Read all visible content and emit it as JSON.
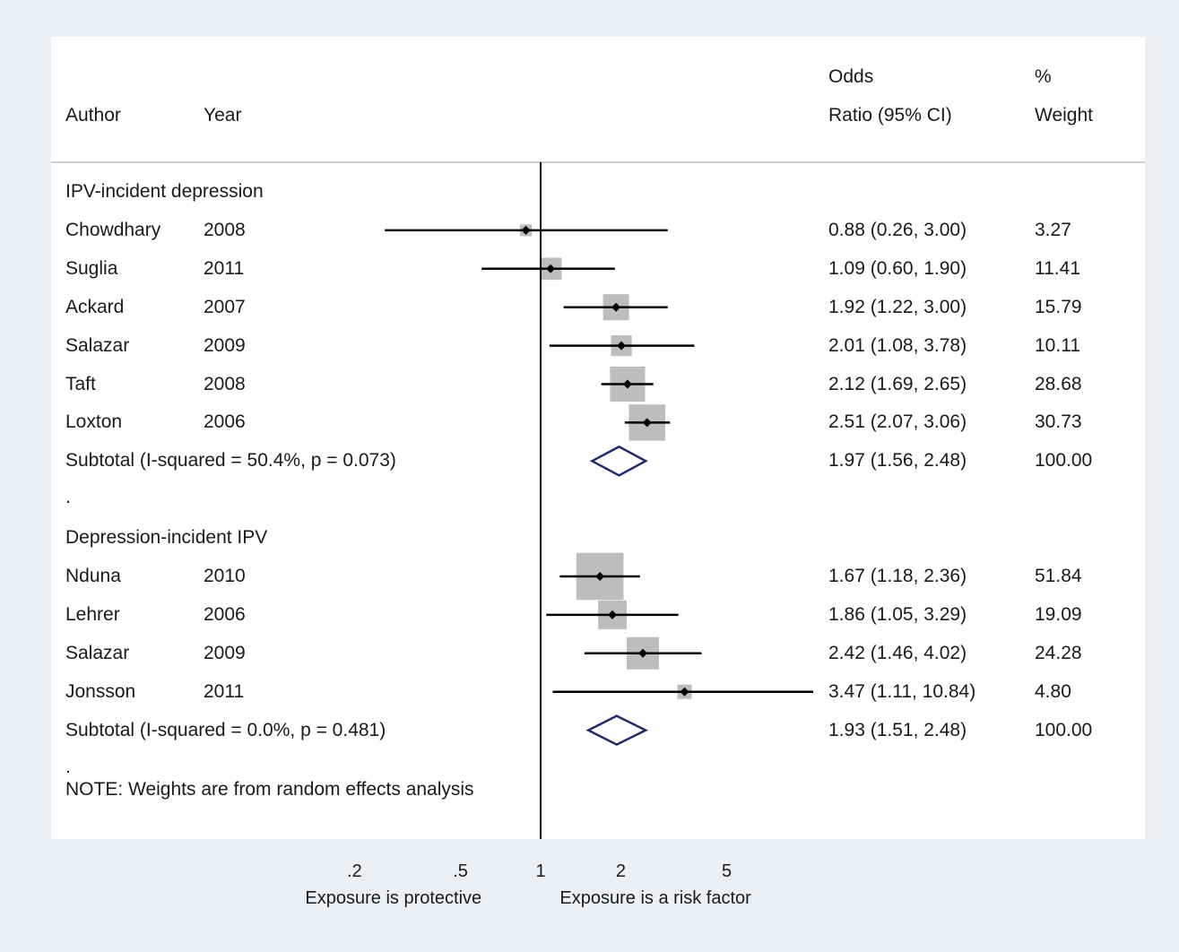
{
  "header": {
    "author": "Author",
    "year": "Year",
    "or_line1": "Odds",
    "or_line2": "Ratio (95% CI)",
    "weight_line1": "%",
    "weight_line2": "Weight"
  },
  "chart_data": {
    "type": "forest",
    "title": "",
    "x_scale": "log",
    "null_line": 1,
    "x_ticks": [
      {
        "value": 0.2,
        "label": ".2"
      },
      {
        "value": 0.5,
        "label": ".5"
      },
      {
        "value": 1,
        "label": "1"
      },
      {
        "value": 2,
        "label": "2"
      },
      {
        "value": 5,
        "label": "5"
      }
    ],
    "xlabel_left": "Exposure is protective",
    "xlabel_right": "Exposure is a risk factor",
    "groups": [
      {
        "name": "IPV-incident depression",
        "studies": [
          {
            "author": "Chowdhary",
            "year": "2008",
            "or": 0.88,
            "lo": 0.26,
            "hi": 3.0,
            "ci_text": "0.88 (0.26, 3.00)",
            "weight": 3.27,
            "weight_text": "3.27"
          },
          {
            "author": "Suglia",
            "year": "2011",
            "or": 1.09,
            "lo": 0.6,
            "hi": 1.9,
            "ci_text": "1.09 (0.60, 1.90)",
            "weight": 11.41,
            "weight_text": "11.41"
          },
          {
            "author": "Ackard",
            "year": "2007",
            "or": 1.92,
            "lo": 1.22,
            "hi": 3.0,
            "ci_text": "1.92 (1.22, 3.00)",
            "weight": 15.79,
            "weight_text": "15.79"
          },
          {
            "author": "Salazar",
            "year": "2009",
            "or": 2.01,
            "lo": 1.08,
            "hi": 3.78,
            "ci_text": "2.01 (1.08, 3.78)",
            "weight": 10.11,
            "weight_text": "10.11"
          },
          {
            "author": "Taft",
            "year": "2008",
            "or": 2.12,
            "lo": 1.69,
            "hi": 2.65,
            "ci_text": "2.12 (1.69, 2.65)",
            "weight": 28.68,
            "weight_text": "28.68"
          },
          {
            "author": "Loxton",
            "year": "2006",
            "or": 2.51,
            "lo": 2.07,
            "hi": 3.06,
            "ci_text": "2.51 (2.07, 3.06)",
            "weight": 30.73,
            "weight_text": "30.73"
          }
        ],
        "subtotal": {
          "label": "Subtotal  (I-squared = 50.4%, p = 0.073)",
          "or": 1.97,
          "lo": 1.56,
          "hi": 2.48,
          "ci_text": "1.97 (1.56, 2.48)",
          "weight_text": "100.00"
        }
      },
      {
        "name": "Depression-incident IPV",
        "studies": [
          {
            "author": "Nduna",
            "year": "2010",
            "or": 1.67,
            "lo": 1.18,
            "hi": 2.36,
            "ci_text": "1.67 (1.18, 2.36)",
            "weight": 51.84,
            "weight_text": "51.84"
          },
          {
            "author": "Lehrer",
            "year": "2006",
            "or": 1.86,
            "lo": 1.05,
            "hi": 3.29,
            "ci_text": "1.86 (1.05, 3.29)",
            "weight": 19.09,
            "weight_text": "19.09"
          },
          {
            "author": "Salazar",
            "year": "2009",
            "or": 2.42,
            "lo": 1.46,
            "hi": 4.02,
            "ci_text": "2.42 (1.46, 4.02)",
            "weight": 24.28,
            "weight_text": "24.28"
          },
          {
            "author": "Jonsson",
            "year": "2011",
            "or": 3.47,
            "lo": 1.11,
            "hi": 10.84,
            "ci_text": "3.47 (1.11, 10.84)",
            "weight": 4.8,
            "weight_text": "4.80",
            "clipped_right": true
          }
        ],
        "subtotal": {
          "label": "Subtotal  (I-squared = 0.0%, p = 0.481)",
          "or": 1.93,
          "lo": 1.51,
          "hi": 2.48,
          "ci_text": "1.93 (1.51, 2.48)",
          "weight_text": "100.00"
        }
      }
    ],
    "separator": ".",
    "note": "NOTE: Weights are from random effects analysis",
    "colors": {
      "box": "#bdbdbd",
      "diamond": "#1f2a6b",
      "line": "#000000"
    }
  }
}
